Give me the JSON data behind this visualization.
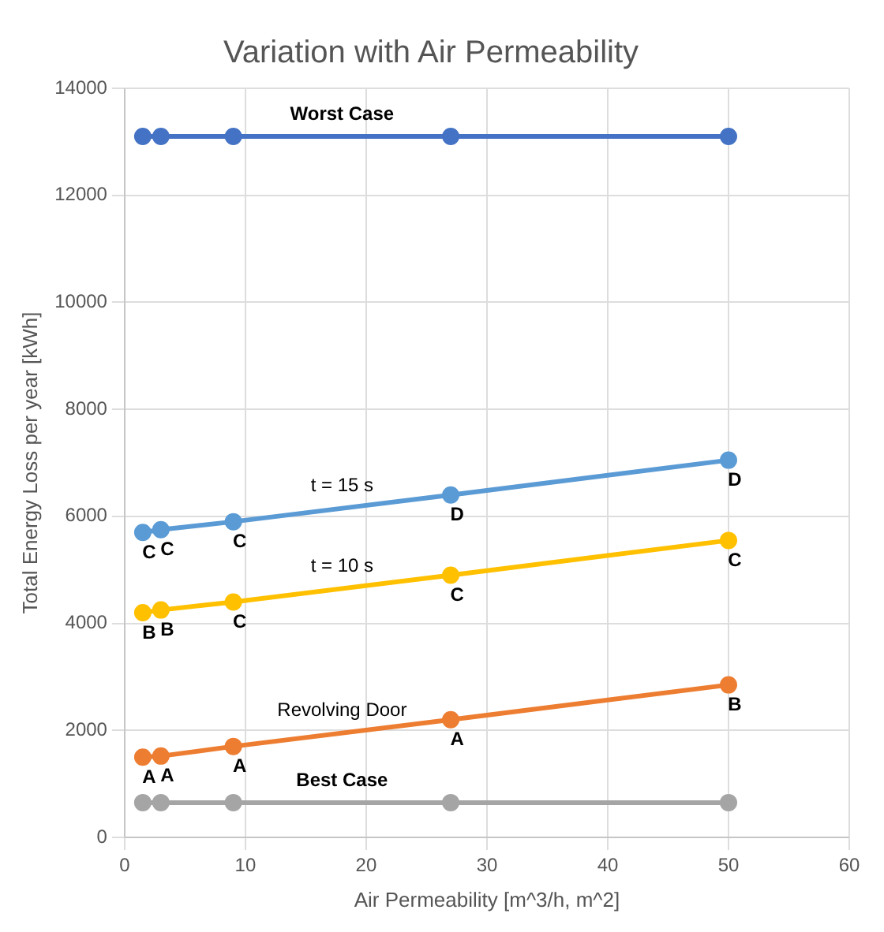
{
  "chart_data": {
    "type": "line",
    "title": "Variation with Air Permeability",
    "xlabel": "Air Permeability [m^3/h, m^2]",
    "ylabel": "Total Energy Loss per year [kWh]",
    "x": [
      1.5,
      3,
      9,
      27,
      50
    ],
    "series": [
      {
        "name": "Worst Case",
        "color": "#4472c4",
        "values": [
          13100,
          13100,
          13100,
          13100,
          13100
        ]
      },
      {
        "name": "t = 15 s",
        "color": "#5b9bd5",
        "values": [
          5700,
          5750,
          5900,
          6400,
          7050
        ]
      },
      {
        "name": "t = 10 s",
        "color": "#ffc000",
        "values": [
          4200,
          4250,
          4400,
          4900,
          5550
        ]
      },
      {
        "name": "Revolving Door",
        "color": "#ed7d31",
        "values": [
          1500,
          1520,
          1700,
          2200,
          2850
        ]
      },
      {
        "name": "Best Case",
        "color": "#a5a5a5",
        "values": [
          650,
          650,
          650,
          650,
          650
        ]
      }
    ],
    "annotations": [
      {
        "text": "C",
        "x": 1.5,
        "y": 5700
      },
      {
        "text": "C",
        "x": 3,
        "y": 5750
      },
      {
        "text": "C",
        "x": 9,
        "y": 5900
      },
      {
        "text": "D",
        "x": 27,
        "y": 6400
      },
      {
        "text": "D",
        "x": 50,
        "y": 7050
      },
      {
        "text": "B",
        "x": 1.5,
        "y": 4200
      },
      {
        "text": "B",
        "x": 3,
        "y": 4250
      },
      {
        "text": "C",
        "x": 9,
        "y": 4400
      },
      {
        "text": "C",
        "x": 27,
        "y": 4900
      },
      {
        "text": "C",
        "x": 50,
        "y": 5550
      },
      {
        "text": "A",
        "x": 1.5,
        "y": 1500
      },
      {
        "text": "A",
        "x": 3,
        "y": 1520
      },
      {
        "text": "A",
        "x": 9,
        "y": 1700
      },
      {
        "text": "A",
        "x": 27,
        "y": 2200
      },
      {
        "text": "B",
        "x": 50,
        "y": 2850
      }
    ],
    "xlim": [
      0,
      60
    ],
    "xticks": [
      0,
      10,
      20,
      30,
      40,
      50,
      60
    ],
    "ylim": [
      0,
      14000
    ],
    "yticks": [
      0,
      2000,
      4000,
      6000,
      8000,
      10000,
      12000,
      14000
    ],
    "grid": true,
    "legend": false,
    "marker": "circle",
    "line_style": "solid"
  }
}
